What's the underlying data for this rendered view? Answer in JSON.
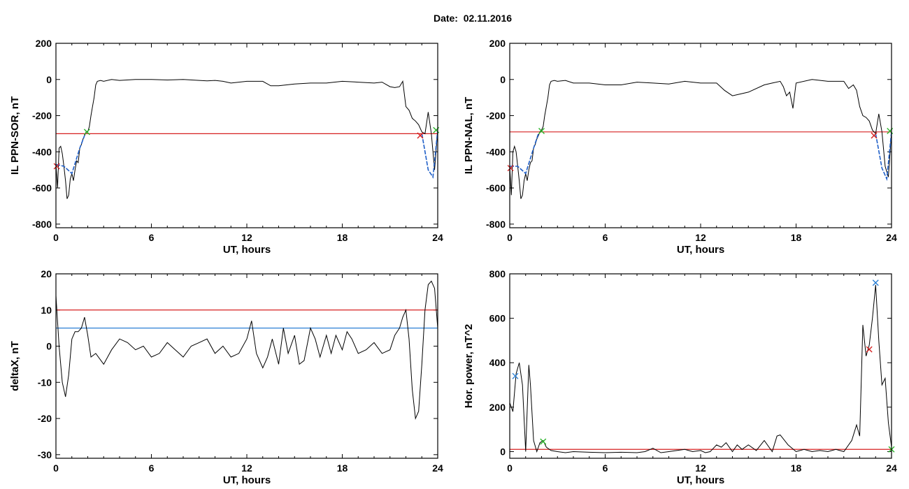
{
  "title": "Date:  02.11.2016",
  "colors": {
    "trace": "#000000",
    "threshold_red": "#d62020",
    "threshold_blue": "#2a7fd4",
    "marker_green": "#2bb52b",
    "segment_blue": "#1f5fc8"
  },
  "chart_data": [
    {
      "type": "line",
      "xlabel": "UT, hours",
      "ylabel": "IL PPN-SOR, nT",
      "xlim": [
        0,
        24
      ],
      "ylim": [
        -820,
        200
      ],
      "xticks": [
        0,
        6,
        12,
        18,
        24
      ],
      "yticks": [
        -800,
        -600,
        -400,
        -200,
        0,
        200
      ],
      "tick_labels_x": [
        "0",
        "6",
        "12",
        "18",
        "24"
      ],
      "tick_labels_y": [
        "-800",
        "-600",
        "-400",
        "-200",
        "0",
        "200"
      ],
      "series": [
        {
          "x": [
            0,
            0.1,
            0.2,
            0.3,
            0.4,
            0.5,
            0.6,
            0.7,
            0.8,
            0.9,
            1.0,
            1.1,
            1.2,
            1.3,
            1.4,
            1.5,
            1.6,
            1.7,
            1.8,
            1.9,
            2.0,
            2.1,
            2.2,
            2.3,
            2.4,
            2.5,
            2.6,
            2.8,
            3.0,
            3.5,
            4,
            5,
            6,
            7,
            8,
            9,
            9.5,
            10,
            10.5,
            11,
            12,
            13,
            13.5,
            14,
            15,
            16,
            17,
            18,
            19,
            20,
            20.5,
            21,
            21.3,
            21.6,
            21.8,
            22,
            22.2,
            22.4,
            22.6,
            22.8,
            23.0,
            23.2,
            23.4,
            23.6,
            23.8,
            24
          ],
          "y": [
            -470,
            -600,
            -380,
            -370,
            -410,
            -480,
            -560,
            -660,
            -640,
            -550,
            -520,
            -560,
            -500,
            -450,
            -460,
            -380,
            -360,
            -330,
            -310,
            -290,
            -290,
            -260,
            -200,
            -150,
            -100,
            -30,
            -10,
            -5,
            -10,
            0,
            -5,
            0,
            0,
            -3,
            0,
            -5,
            -8,
            -5,
            -10,
            -20,
            -10,
            -10,
            -35,
            -35,
            -25,
            -20,
            -20,
            -10,
            -15,
            -20,
            -15,
            -40,
            -45,
            -40,
            -10,
            -150,
            -170,
            -215,
            -230,
            -250,
            -290,
            -300,
            -180,
            -300,
            -500,
            -280
          ]
        },
        {
          "x": [
            0,
            0.5,
            1.0,
            1.5,
            1.8,
            23.0,
            23.4,
            23.7,
            24.0
          ],
          "y": [
            -470,
            -480,
            -520,
            -380,
            -310,
            -300,
            -500,
            -540,
            -280
          ]
        }
      ],
      "threshold": -300,
      "markers": [
        {
          "x": 0.05,
          "y": -480,
          "color": "red"
        },
        {
          "x": 1.95,
          "y": -290,
          "color": "green"
        },
        {
          "x": 22.9,
          "y": -310,
          "color": "red"
        },
        {
          "x": 23.9,
          "y": -280,
          "color": "green"
        }
      ]
    },
    {
      "type": "line",
      "xlabel": "UT, hours",
      "ylabel": "IL PPN-NAL, nT",
      "xlim": [
        0,
        24
      ],
      "ylim": [
        -820,
        200
      ],
      "xticks": [
        0,
        6,
        12,
        18,
        24
      ],
      "yticks": [
        -800,
        -600,
        -400,
        -200,
        0,
        200
      ],
      "tick_labels_x": [
        "0",
        "6",
        "12",
        "18",
        "24"
      ],
      "tick_labels_y": [
        "-800",
        "-600",
        "-400",
        "-200",
        "0",
        "200"
      ],
      "series": [
        {
          "x": [
            0,
            0.1,
            0.2,
            0.3,
            0.4,
            0.5,
            0.6,
            0.7,
            0.8,
            0.9,
            1.0,
            1.1,
            1.2,
            1.3,
            1.4,
            1.5,
            1.6,
            1.7,
            1.8,
            1.9,
            2.0,
            2.1,
            2.2,
            2.3,
            2.4,
            2.5,
            2.6,
            2.8,
            3.0,
            3.5,
            4,
            5,
            6,
            7,
            8,
            9,
            10,
            11,
            12,
            13,
            13.5,
            14,
            14.5,
            15,
            16,
            16.5,
            17,
            17.2,
            17.4,
            17.6,
            17.8,
            18,
            19,
            20,
            21,
            21.3,
            21.6,
            21.8,
            22,
            22.2,
            22.4,
            22.6,
            22.8,
            23.0,
            23.2,
            23.4,
            23.6,
            23.8,
            24
          ],
          "y": [
            -480,
            -640,
            -400,
            -370,
            -400,
            -480,
            -560,
            -660,
            -640,
            -560,
            -520,
            -560,
            -500,
            -460,
            -450,
            -380,
            -360,
            -330,
            -310,
            -290,
            -280,
            -260,
            -200,
            -150,
            -100,
            -30,
            -10,
            -5,
            -10,
            -5,
            -20,
            -20,
            -30,
            -30,
            -15,
            -20,
            -25,
            -10,
            -20,
            -20,
            -60,
            -90,
            -80,
            -70,
            -30,
            -20,
            -10,
            -40,
            -90,
            -70,
            -160,
            -20,
            0,
            -10,
            -10,
            -50,
            -30,
            -60,
            -150,
            -200,
            -210,
            -230,
            -280,
            -300,
            -190,
            -290,
            -480,
            -540,
            -290
          ]
        },
        {
          "x": [
            0,
            0.5,
            1.0,
            1.5,
            1.8,
            23.0,
            23.4,
            23.7,
            24.0
          ],
          "y": [
            -480,
            -480,
            -520,
            -380,
            -300,
            -300,
            -490,
            -550,
            -290
          ]
        }
      ],
      "threshold": -290,
      "markers": [
        {
          "x": 0.05,
          "y": -490,
          "color": "red"
        },
        {
          "x": 2.0,
          "y": -285,
          "color": "green"
        },
        {
          "x": 22.9,
          "y": -310,
          "color": "red"
        },
        {
          "x": 23.9,
          "y": -285,
          "color": "green"
        }
      ]
    },
    {
      "type": "line",
      "xlabel": "UT, hours",
      "ylabel": "deltaX, nT",
      "xlim": [
        0,
        24
      ],
      "ylim": [
        -31,
        20
      ],
      "xticks": [
        0,
        6,
        12,
        18,
        24
      ],
      "yticks": [
        -30,
        -20,
        -10,
        0,
        10,
        20
      ],
      "tick_labels_x": [
        "0",
        "6",
        "12",
        "18",
        "24"
      ],
      "tick_labels_y": [
        "-30",
        "-20",
        "-10",
        "0",
        "10",
        "20"
      ],
      "series": [
        {
          "x": [
            0,
            0.2,
            0.4,
            0.6,
            0.8,
            1.0,
            1.2,
            1.4,
            1.6,
            1.8,
            2.0,
            2.2,
            2.5,
            3.0,
            3.5,
            4.0,
            4.5,
            5.0,
            5.5,
            6.0,
            6.5,
            7.0,
            7.5,
            8.0,
            8.5,
            9.0,
            9.5,
            10.0,
            10.5,
            11.0,
            11.5,
            12.0,
            12.3,
            12.6,
            13.0,
            13.3,
            13.6,
            14.0,
            14.3,
            14.6,
            15.0,
            15.3,
            15.6,
            16.0,
            16.3,
            16.6,
            17.0,
            17.3,
            17.6,
            18.0,
            18.3,
            18.6,
            19.0,
            19.5,
            20.0,
            20.5,
            21.0,
            21.3,
            21.6,
            21.8,
            22.0,
            22.2,
            22.4,
            22.6,
            22.8,
            23.0,
            23.2,
            23.4,
            23.6,
            23.8,
            24.0
          ],
          "y": [
            14,
            0,
            -10,
            -14,
            -8,
            2,
            4,
            4,
            5,
            8,
            3,
            -3,
            -2,
            -5,
            -1,
            2,
            1,
            -1,
            0,
            -3,
            -2,
            1,
            -1,
            -3,
            0,
            1,
            2,
            -2,
            0,
            -3,
            -2,
            2,
            7,
            -2,
            -6,
            -3,
            2,
            -5,
            5,
            -2,
            3,
            -5,
            -4,
            5,
            2,
            -3,
            3,
            -2,
            3,
            -1,
            4,
            2,
            -2,
            -1,
            1,
            -2,
            -1,
            3,
            5,
            8,
            10,
            2,
            -12,
            -20,
            -18,
            -5,
            10,
            17,
            18,
            16,
            5
          ]
        }
      ],
      "threshold": 10,
      "threshold2": 5
    },
    {
      "type": "line",
      "xlabel": "UT, hours",
      "ylabel": "Hor. power, nT^2",
      "xlim": [
        0,
        24
      ],
      "ylim": [
        -30,
        800
      ],
      "xticks": [
        0,
        6,
        12,
        18,
        24
      ],
      "yticks": [
        0,
        200,
        400,
        600,
        800
      ],
      "tick_labels_x": [
        "0",
        "6",
        "12",
        "18",
        "24"
      ],
      "tick_labels_y": [
        "0",
        "200",
        "400",
        "600",
        "800"
      ],
      "series": [
        {
          "x": [
            0,
            0.2,
            0.4,
            0.6,
            0.8,
            1.0,
            1.2,
            1.3,
            1.5,
            1.7,
            1.9,
            2.1,
            2.3,
            2.6,
            3.0,
            3.5,
            4.0,
            5.0,
            6.0,
            7.0,
            8.0,
            8.5,
            9.0,
            9.5,
            10.0,
            10.5,
            11.0,
            11.5,
            12.0,
            12.3,
            12.6,
            13.0,
            13.3,
            13.6,
            14.0,
            14.3,
            14.6,
            15.0,
            15.5,
            16.0,
            16.5,
            16.8,
            17.0,
            17.5,
            18.0,
            18.5,
            19.0,
            19.5,
            20.0,
            20.5,
            21.0,
            21.5,
            21.8,
            22.0,
            22.2,
            22.4,
            22.6,
            22.8,
            23.0,
            23.2,
            23.4,
            23.6,
            23.8,
            24.0
          ],
          "y": [
            220,
            180,
            350,
            400,
            300,
            0,
            390,
            300,
            50,
            0,
            40,
            50,
            20,
            5,
            0,
            -5,
            0,
            -3,
            -5,
            -3,
            -5,
            0,
            15,
            -5,
            0,
            5,
            10,
            0,
            5,
            -5,
            0,
            30,
            20,
            40,
            0,
            30,
            10,
            30,
            5,
            50,
            0,
            70,
            75,
            30,
            0,
            10,
            0,
            5,
            0,
            10,
            0,
            50,
            120,
            70,
            570,
            430,
            480,
            600,
            750,
            500,
            300,
            330,
            130,
            20
          ]
        }
      ],
      "threshold": 10,
      "markers": [
        {
          "x": 0.35,
          "y": 340,
          "color": "blue"
        },
        {
          "x": 2.1,
          "y": 45,
          "color": "green"
        },
        {
          "x": 22.6,
          "y": 460,
          "color": "red"
        },
        {
          "x": 23.0,
          "y": 760,
          "color": "blue"
        },
        {
          "x": 24.0,
          "y": 10,
          "color": "green"
        }
      ]
    }
  ]
}
